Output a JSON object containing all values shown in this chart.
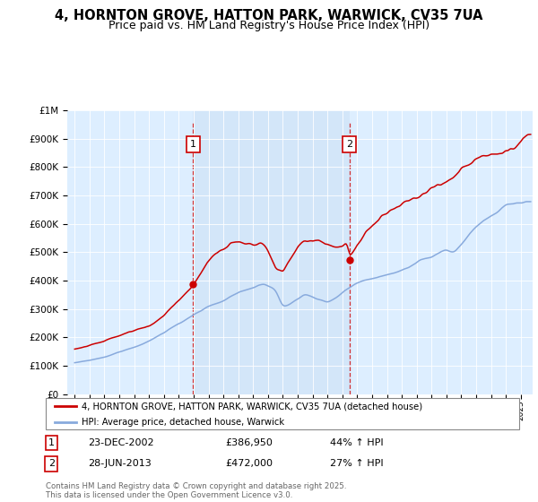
{
  "title_line1": "4, HORNTON GROVE, HATTON PARK, WARWICK, CV35 7UA",
  "title_line2": "Price paid vs. HM Land Registry's House Price Index (HPI)",
  "legend_label1": "4, HORNTON GROVE, HATTON PARK, WARWICK, CV35 7UA (detached house)",
  "legend_label2": "HPI: Average price, detached house, Warwick",
  "annotation1_date": "23-DEC-2002",
  "annotation1_price": "£386,950",
  "annotation1_hpi": "44% ↑ HPI",
  "annotation2_date": "28-JUN-2013",
  "annotation2_price": "£472,000",
  "annotation2_hpi": "27% ↑ HPI",
  "footnote": "Contains HM Land Registry data © Crown copyright and database right 2025.\nThis data is licensed under the Open Government Licence v3.0.",
  "sale1_year": 2002.97,
  "sale1_value": 386950,
  "sale2_year": 2013.49,
  "sale2_value": 472000,
  "red_color": "#cc0000",
  "blue_color": "#88aadd",
  "shade_color": "#ddeeff",
  "background_color": "#ddeeff",
  "grid_color": "#cccccc",
  "ylim_min": 0,
  "ylim_max": 1000000,
  "xlim_min": 1994.5,
  "xlim_max": 2025.8
}
